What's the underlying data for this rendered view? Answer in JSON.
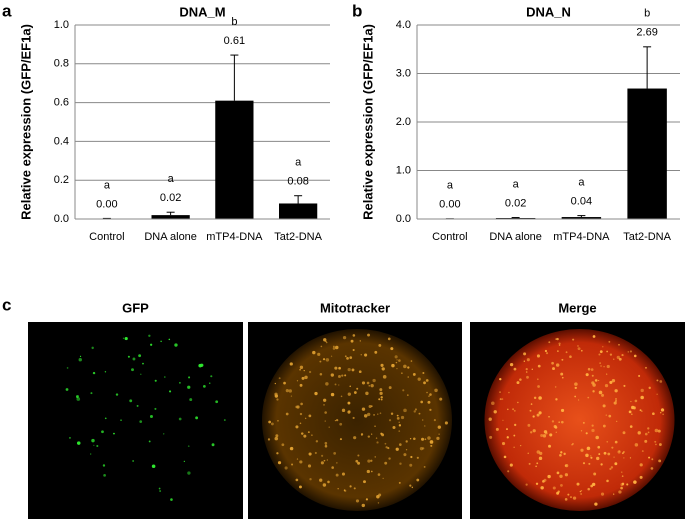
{
  "chart_data": [
    {
      "type": "bar",
      "title": "DNA_M",
      "y_label": "Relative expression (GFP/EF1a)",
      "categories": [
        "Control",
        "DNA alone",
        "mTP4-DNA",
        "Tat2-DNA"
      ],
      "values": [
        0.0,
        0.02,
        0.61,
        0.08
      ],
      "value_labels": [
        "0.00",
        "0.02",
        "0.61",
        "0.08"
      ],
      "errors": [
        0.003,
        0.015,
        0.235,
        0.04
      ],
      "annotations": [
        "a",
        "a",
        "b",
        "a"
      ],
      "color": "#000000",
      "ylim": [
        0,
        1.0
      ],
      "yticks": [
        {
          "value": 0,
          "label": "0.0"
        },
        {
          "value": 0.2,
          "label": "0.2"
        },
        {
          "value": 0.4,
          "label": "0.4"
        },
        {
          "value": 0.6,
          "label": "0.6"
        },
        {
          "value": 0.8,
          "label": "0.8"
        },
        {
          "value": 1.0,
          "label": "1.0"
        }
      ],
      "grid": true
    },
    {
      "type": "bar",
      "title": "DNA_N",
      "y_label": "Relative expression (GFP/EF1a)",
      "categories": [
        "Control",
        "DNA alone",
        "mTP4-DNA",
        "Tat2-DNA"
      ],
      "values": [
        0.0,
        0.02,
        0.04,
        2.69
      ],
      "value_labels": [
        "0.00",
        "0.02",
        "0.04",
        "2.69"
      ],
      "errors": [
        0.005,
        0.01,
        0.03,
        0.86
      ],
      "annotations": [
        "a",
        "a",
        "a",
        "b"
      ],
      "color": "#000000",
      "ylim": [
        0,
        4.0
      ],
      "yticks": [
        {
          "value": 0,
          "label": "0.0"
        },
        {
          "value": 1,
          "label": "1.0"
        },
        {
          "value": 2,
          "label": "2.0"
        },
        {
          "value": 3,
          "label": "3.0"
        },
        {
          "value": 4,
          "label": "4.0"
        }
      ],
      "grid": true
    }
  ],
  "figure": {
    "panel_labels": [
      "a",
      "b",
      "c"
    ],
    "image_titles": [
      "GFP",
      "Mitotracker",
      "Merge"
    ]
  }
}
